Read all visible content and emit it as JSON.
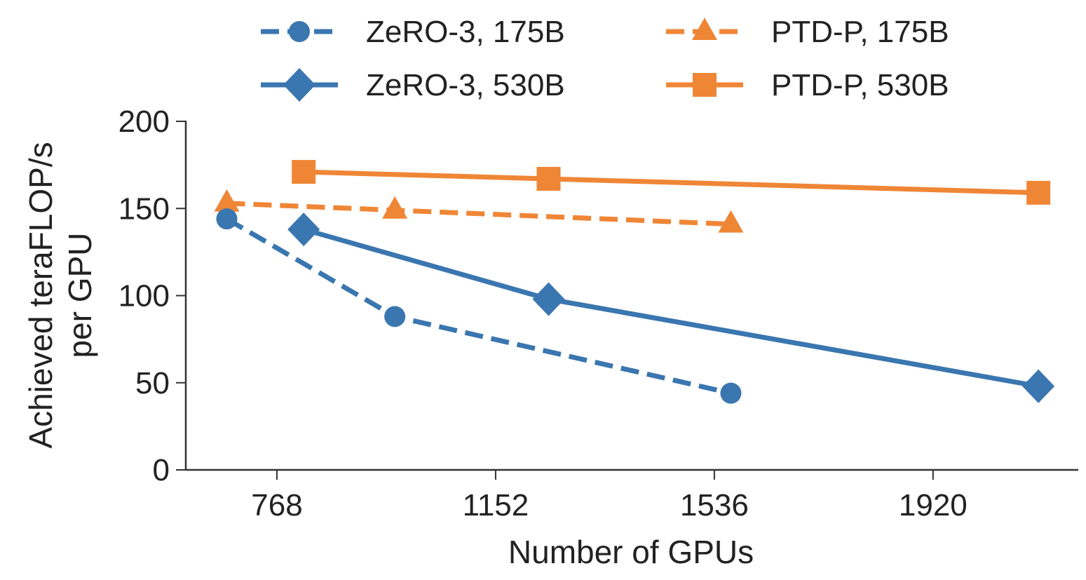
{
  "chart_data": {
    "type": "line",
    "title": "",
    "xlabel": "Number of GPUs",
    "ylabel": [
      "Achieved teraFLOP/s",
      "per GPU"
    ],
    "xlim": [
      608,
      2175
    ],
    "ylim": [
      0,
      200
    ],
    "xticks": [
      768,
      1152,
      1536,
      1920
    ],
    "yticks": [
      0,
      50,
      100,
      150,
      200
    ],
    "grid": false,
    "legend_position": "top",
    "series": [
      {
        "name": "ZeRO-3, 175B",
        "color": "#3a76af",
        "style": "dashed",
        "marker": "circle",
        "x": [
          680,
          975,
          1565
        ],
        "y": [
          144,
          88,
          44
        ]
      },
      {
        "name": "ZeRO-3, 530B",
        "color": "#3a76af",
        "style": "solid",
        "marker": "diamond",
        "x": [
          815,
          1245,
          2105
        ],
        "y": [
          138,
          98,
          48
        ]
      },
      {
        "name": "PTD-P, 175B",
        "color": "#ef8636",
        "style": "dashed",
        "marker": "triangle",
        "x": [
          680,
          975,
          1565
        ],
        "y": [
          153,
          149,
          141
        ]
      },
      {
        "name": "PTD-P, 530B",
        "color": "#ef8636",
        "style": "solid",
        "marker": "square",
        "x": [
          815,
          1245,
          2105
        ],
        "y": [
          171,
          167,
          159
        ]
      }
    ]
  }
}
